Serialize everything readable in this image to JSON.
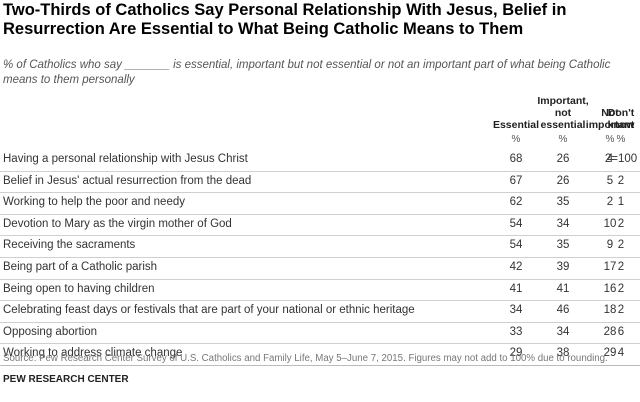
{
  "chart_data": {
    "type": "table",
    "title": "Two-Thirds of Catholics Say Personal Relationship With Jesus, Belief in Resurrection Are Essential to What Being Catholic Means to Them",
    "subtitle_pre": "% of Catholics who say",
    "subtitle_blank": "_______",
    "subtitle_post": "is essential, important but not essential or not an important part of what being Catholic means to them personally",
    "columns": [
      {
        "key": "essential",
        "label_lines": [
          "Essential"
        ]
      },
      {
        "key": "important",
        "label_lines": [
          "Important,",
          "not",
          "essential"
        ]
      },
      {
        "key": "not_important",
        "label_lines": [
          "Not",
          "important"
        ]
      },
      {
        "key": "dont_know",
        "label_lines": [
          "Don't",
          "know"
        ]
      }
    ],
    "unit_row": [
      "%",
      "%",
      "%",
      "%"
    ],
    "rows": [
      {
        "label": "Having a personal relationship with Jesus Christ",
        "values": [
          "68",
          "26",
          "4",
          "2=100"
        ]
      },
      {
        "label": "Belief in Jesus' actual resurrection from the dead",
        "values": [
          "67",
          "26",
          "5",
          "2"
        ]
      },
      {
        "label": "Working to help the poor and needy",
        "values": [
          "62",
          "35",
          "2",
          "1"
        ]
      },
      {
        "label": "Devotion to Mary as the virgin mother of God",
        "values": [
          "54",
          "34",
          "10",
          "2"
        ]
      },
      {
        "label": "Receiving the sacraments",
        "values": [
          "54",
          "35",
          "9",
          "2"
        ]
      },
      {
        "label": "Being part of a Catholic parish",
        "values": [
          "42",
          "39",
          "17",
          "2"
        ]
      },
      {
        "label": "Being open to having children",
        "values": [
          "41",
          "41",
          "16",
          "2"
        ]
      },
      {
        "label": "Celebrating feast days or festivals that are part of your national or ethnic heritage",
        "values": [
          "34",
          "46",
          "18",
          "2"
        ]
      },
      {
        "label": "Opposing abortion",
        "values": [
          "33",
          "34",
          "28",
          "6"
        ]
      },
      {
        "label": "Working to address climate change",
        "values": [
          "29",
          "38",
          "29",
          "4"
        ]
      }
    ],
    "source": "Source: Pew Research Center Survey of U.S. Catholics and Family Life, May 5–June 7, 2015. Figures may not add to 100% due to rounding.",
    "brand": "PEW RESEARCH CENTER"
  }
}
